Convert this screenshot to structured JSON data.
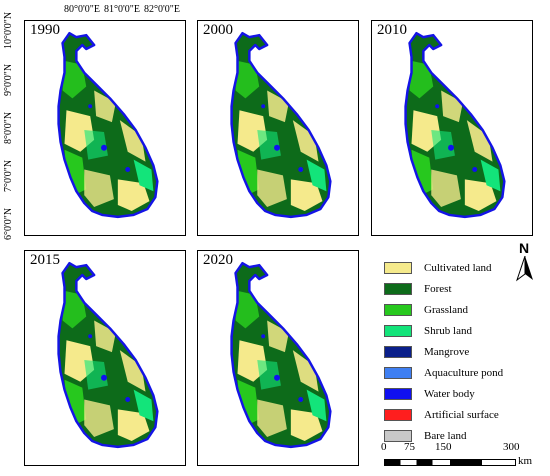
{
  "coords": {
    "lon": [
      "80°0'0\"E",
      "81°0'0\"E",
      "82°0'0\"E"
    ],
    "lat": [
      "10°0'0\"N",
      "9°0'0\"N",
      "8°0'0\"N",
      "7°0'0\"N",
      "6°0'0\"N"
    ]
  },
  "panels": [
    {
      "year": "1990"
    },
    {
      "year": "2000"
    },
    {
      "year": "2010"
    },
    {
      "year": "2015"
    },
    {
      "year": "2020"
    }
  ],
  "north_arrow": {
    "label": "N"
  },
  "legend": [
    {
      "label": "Cultivated land",
      "color": "#f5ea8c"
    },
    {
      "label": "Forest",
      "color": "#0d6b1a"
    },
    {
      "label": "Grassland",
      "color": "#27c81e"
    },
    {
      "label": "Shrub land",
      "color": "#13e47a"
    },
    {
      "label": "Mangrove",
      "color": "#0a1f8a"
    },
    {
      "label": "Aquaculture pond",
      "color": "#3f7ff2"
    },
    {
      "label": "Water body",
      "color": "#1010f0"
    },
    {
      "label": "Artificial surface",
      "color": "#ff1e1e"
    },
    {
      "label": "Bare land",
      "color": "#c8c8c8"
    }
  ],
  "scale_bar": {
    "ticks": [
      "0",
      "75",
      "150",
      "300"
    ],
    "unit": "km"
  }
}
